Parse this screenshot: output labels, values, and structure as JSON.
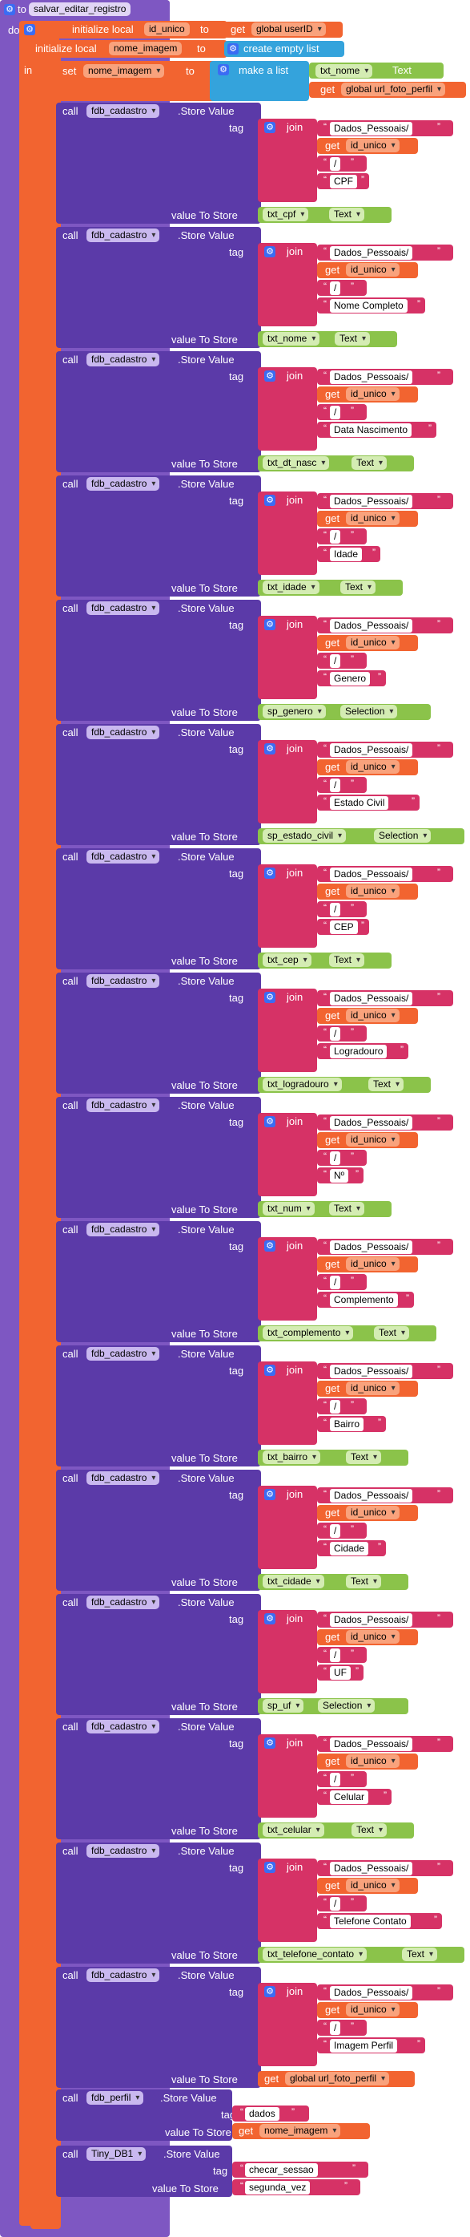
{
  "procedure": {
    "kw_to": "to",
    "name": "salvar_editar_registro",
    "kw_do": "do"
  },
  "locals": {
    "initialize_local": "initialize local",
    "kw_to": "to",
    "kw_in": "in",
    "var1": "id_unico",
    "var1_get": "get",
    "var1_value": "global userID",
    "var2": "nome_imagem",
    "var2_value": "create empty list",
    "set": "set",
    "set_var": "nome_imagem",
    "make_list": "make a list",
    "list_item1_comp": "txt_nome",
    "list_item1_prop": "Text",
    "list_item2_get": "get",
    "list_item2": "global url_foto_perfil"
  },
  "labels": {
    "call": "call",
    "store_value": ".Store Value",
    "tag": "tag",
    "value_to_store": "value To Store",
    "join": "join",
    "get": "get",
    "id_unico": "id_unico",
    "prefix": "Dados_Pessoais/",
    "slash": "/",
    "firebase": "fdb_cadastro"
  },
  "store_calls": [
    {
      "field": "CPF",
      "component": "txt_cpf",
      "property": "Text"
    },
    {
      "field": "Nome Completo",
      "component": "txt_nome",
      "property": "Text"
    },
    {
      "field": "Data Nascimento",
      "component": "txt_dt_nasc",
      "property": "Text"
    },
    {
      "field": "Idade",
      "component": "txt_idade",
      "property": "Text"
    },
    {
      "field": "Genero",
      "component": "sp_genero",
      "property": "Selection"
    },
    {
      "field": "Estado Civil",
      "component": "sp_estado_civil",
      "property": "Selection"
    },
    {
      "field": "CEP",
      "component": "txt_cep",
      "property": "Text"
    },
    {
      "field": "Logradouro",
      "component": "txt_logradouro",
      "property": "Text"
    },
    {
      "field": "Nº",
      "component": "txt_num",
      "property": "Text"
    },
    {
      "field": "Complemento",
      "component": "txt_complemento",
      "property": "Text"
    },
    {
      "field": "Bairro",
      "component": "txt_bairro",
      "property": "Text"
    },
    {
      "field": "Cidade",
      "component": "txt_cidade",
      "property": "Text"
    },
    {
      "field": "UF",
      "component": "sp_uf",
      "property": "Selection"
    },
    {
      "field": "Celular",
      "component": "txt_celular",
      "property": "Text"
    },
    {
      "field": "Telefone Contato",
      "component": "txt_telefone_contato",
      "property": "Text"
    },
    {
      "field": "Imagem Perfil",
      "get": "get",
      "global": "global url_foto_perfil"
    }
  ],
  "perfil_call": {
    "call": "call",
    "component": "fdb_perfil",
    "method": ".Store Value",
    "tag_label": "tag",
    "tag": "dados",
    "value_label": "value To Store",
    "value_get": "get",
    "value": "nome_imagem"
  },
  "tinydb_call": {
    "call": "call",
    "component": "Tiny_DB1",
    "method": ".Store Value",
    "tag_label": "tag",
    "tag": "checar_sessao",
    "value_label": "value To Store",
    "value": "segunda_vez"
  },
  "colors": {
    "procedure": "#7e57c2",
    "procedure_dark": "#6a3fb5",
    "variable": "#f26430",
    "text": "#d63266",
    "list": "#34a3dc",
    "component": "#8bc34a",
    "call": "#5b3aa8"
  }
}
